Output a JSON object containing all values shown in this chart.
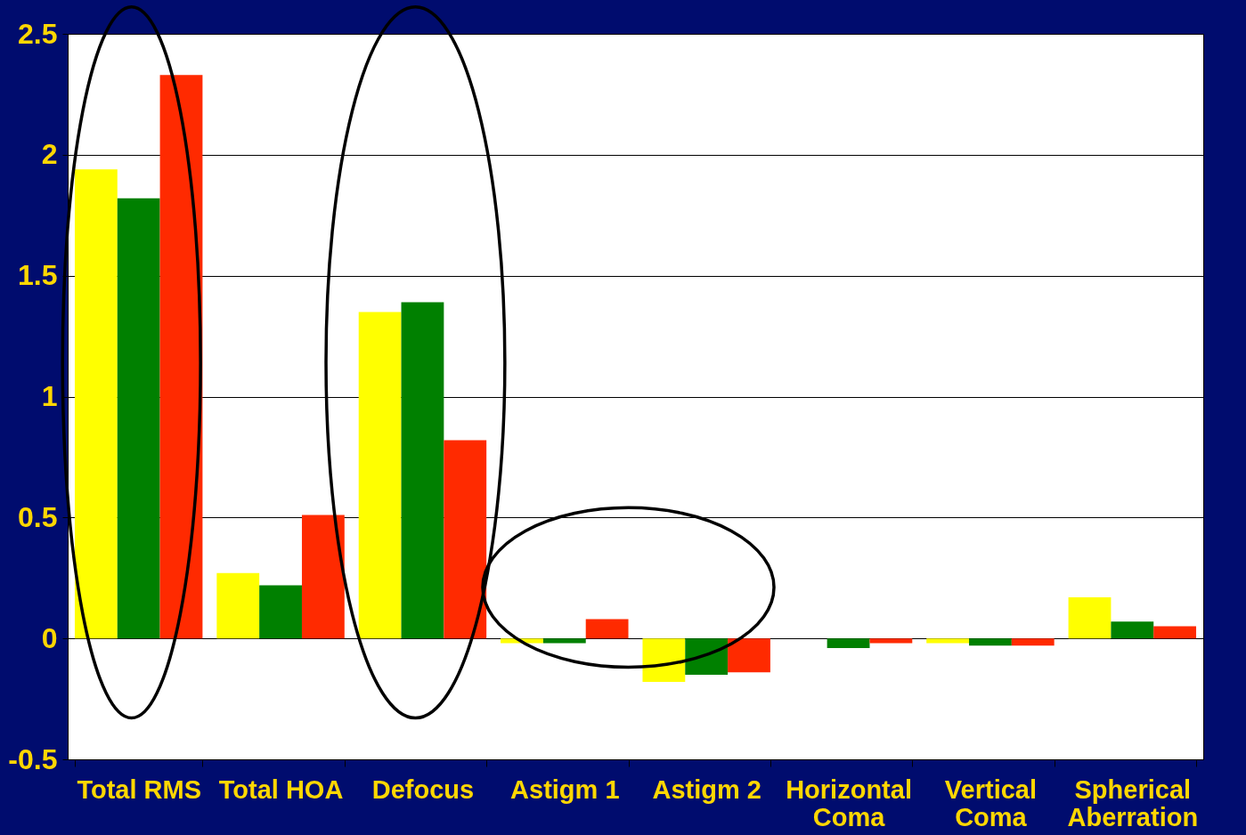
{
  "chart_data": {
    "type": "bar",
    "categories": [
      "Total RMS",
      "Total HOA",
      "Defocus",
      "Astigm 1",
      "Astigm 2",
      "Horizontal Coma",
      "Vertical Coma",
      "Spherical Aberration"
    ],
    "series": [
      {
        "color": "#ffff00",
        "values": [
          1.94,
          0.27,
          1.35,
          -0.02,
          -0.18,
          0,
          -0.02,
          0.17
        ]
      },
      {
        "color": "#008000",
        "values": [
          1.82,
          0.22,
          1.39,
          -0.02,
          -0.15,
          -0.04,
          -0.03,
          0.07
        ]
      },
      {
        "color": "#ff2a00",
        "values": [
          2.33,
          0.51,
          0.82,
          0.08,
          -0.14,
          -0.02,
          -0.03,
          0.05
        ]
      }
    ],
    "ylim": [
      -0.5,
      2.5
    ],
    "yticks": [
      -0.5,
      0,
      0.5,
      1,
      1.5,
      2,
      2.5
    ],
    "grid": "y",
    "legend": false
  }
}
